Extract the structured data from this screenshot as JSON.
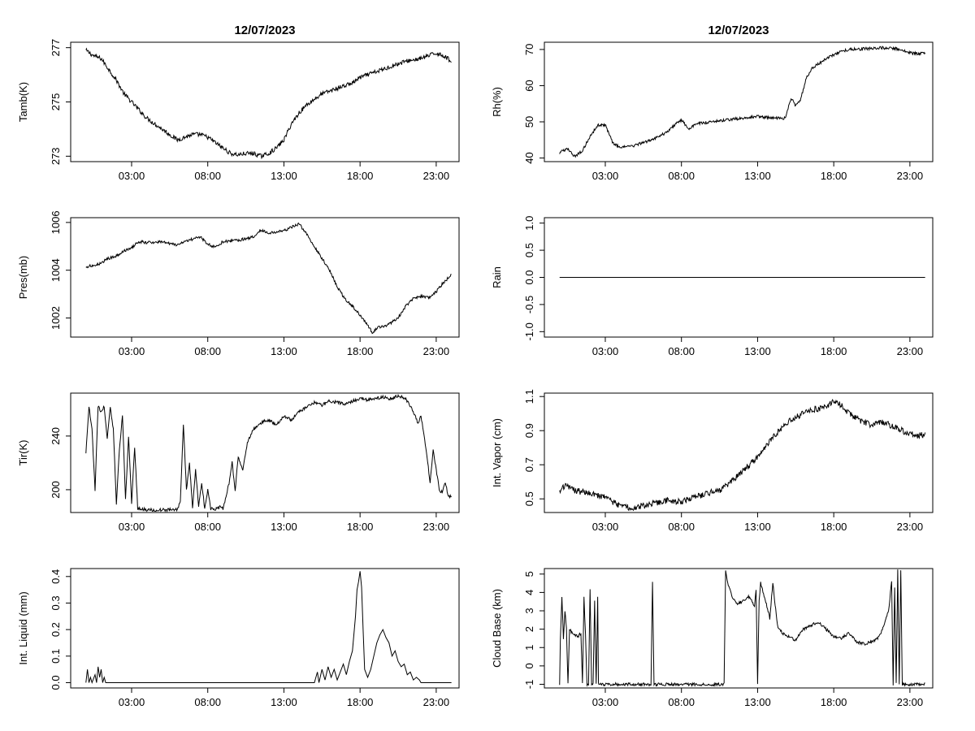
{
  "chart_data": [
    {
      "id": "tamb",
      "type": "line",
      "title": "12/07/2023",
      "ylabel": "Tamb(K)",
      "xlim": [
        -1,
        24.5
      ],
      "xticks": [
        3,
        8,
        13,
        18,
        23
      ],
      "xtick_labels": [
        "03:00",
        "08:00",
        "13:00",
        "18:00",
        "23:00"
      ],
      "ylim": [
        272.8,
        277.2
      ],
      "yticks": [
        273,
        275,
        277
      ],
      "ytick_labels": [
        "273",
        "275",
        "277"
      ],
      "noise": 0.08,
      "x": [
        0,
        0.5,
        1,
        1.5,
        2,
        2.5,
        3,
        3.5,
        4,
        4.5,
        5,
        5.5,
        6,
        6.5,
        7,
        7.5,
        8,
        8.5,
        9,
        9.5,
        10,
        10.5,
        11,
        11.5,
        12,
        12.5,
        13,
        13.5,
        14,
        14.5,
        15,
        15.5,
        16,
        16.5,
        17,
        17.5,
        18,
        18.5,
        19,
        19.5,
        20,
        20.5,
        21,
        21.5,
        22,
        22.5,
        23,
        23.5,
        24
      ],
      "y": [
        276.9,
        276.7,
        276.6,
        276.2,
        275.8,
        275.3,
        275.0,
        274.7,
        274.4,
        274.2,
        274.0,
        273.8,
        273.6,
        273.7,
        273.8,
        273.8,
        273.7,
        273.5,
        273.3,
        273.1,
        273.05,
        273.1,
        273.1,
        273.0,
        273.1,
        273.3,
        273.6,
        274.2,
        274.6,
        274.9,
        275.1,
        275.3,
        275.4,
        275.5,
        275.6,
        275.7,
        275.9,
        276.0,
        276.1,
        276.2,
        276.3,
        276.4,
        276.5,
        276.55,
        276.6,
        276.7,
        276.8,
        276.7,
        276.5
      ]
    },
    {
      "id": "rh",
      "type": "line",
      "title": "12/07/2023",
      "ylabel": "Rh(%)",
      "xlim": [
        -1,
        24.5
      ],
      "xticks": [
        3,
        8,
        13,
        18,
        23
      ],
      "xtick_labels": [
        "03:00",
        "08:00",
        "13:00",
        "18:00",
        "23:00"
      ],
      "ylim": [
        39,
        72
      ],
      "yticks": [
        40,
        50,
        60,
        70
      ],
      "ytick_labels": [
        "40",
        "50",
        "60",
        "70"
      ],
      "noise": 0.4,
      "x": [
        0,
        0.5,
        1,
        1.5,
        2,
        2.5,
        3,
        3.5,
        4,
        5,
        6,
        7,
        7.5,
        8,
        8.5,
        9,
        10,
        11,
        12,
        13,
        14,
        14.8,
        15.2,
        15.5,
        15.8,
        16.2,
        16.6,
        17,
        17.5,
        18,
        18.5,
        19,
        20,
        21,
        22,
        22.5,
        23,
        23.5,
        24
      ],
      "y": [
        41.5,
        42.5,
        40.5,
        42.0,
        46.0,
        49.0,
        49.2,
        44.0,
        43.0,
        43.5,
        45.0,
        47.0,
        49.0,
        50.5,
        48.0,
        49.5,
        50.0,
        50.5,
        51.0,
        51.5,
        51.0,
        51.0,
        56.5,
        54.5,
        56.0,
        62.0,
        65.0,
        66.0,
        67.5,
        68.5,
        69.5,
        70.0,
        70.2,
        70.5,
        70.3,
        70.0,
        69.0,
        68.8,
        69.0
      ]
    },
    {
      "id": "pres",
      "type": "line",
      "title": "",
      "ylabel": "Pres(mb)",
      "xlim": [
        -1,
        24.5
      ],
      "xticks": [
        3,
        8,
        13,
        18,
        23
      ],
      "xtick_labels": [
        "03:00",
        "08:00",
        "13:00",
        "18:00",
        "23:00"
      ],
      "ylim": [
        1001.2,
        1006.2
      ],
      "yticks": [
        1002,
        1004,
        1006
      ],
      "ytick_labels": [
        "1002",
        "1004",
        "1006"
      ],
      "noise": 0.06,
      "x": [
        0,
        0.5,
        1,
        1.5,
        2,
        2.5,
        3,
        3.5,
        4,
        5,
        6,
        7,
        7.5,
        8,
        8.5,
        9,
        10,
        11,
        11.5,
        12,
        13,
        13.5,
        14,
        14.5,
        15,
        15.5,
        16,
        16.5,
        17,
        17.5,
        18,
        18.5,
        18.8,
        19.2,
        19.8,
        20.5,
        21,
        21.5,
        22,
        22.5,
        23,
        23.5,
        24
      ],
      "y": [
        1004.15,
        1004.2,
        1004.3,
        1004.5,
        1004.6,
        1004.8,
        1004.95,
        1005.2,
        1005.15,
        1005.2,
        1005.05,
        1005.3,
        1005.4,
        1005.1,
        1004.95,
        1005.2,
        1005.25,
        1005.4,
        1005.7,
        1005.55,
        1005.65,
        1005.8,
        1005.95,
        1005.5,
        1005.0,
        1004.5,
        1004.0,
        1003.3,
        1002.8,
        1002.5,
        1002.1,
        1001.7,
        1001.4,
        1001.6,
        1001.7,
        1002.0,
        1002.5,
        1002.8,
        1002.9,
        1002.85,
        1003.1,
        1003.5,
        1003.8
      ]
    },
    {
      "id": "rain",
      "type": "line",
      "title": "",
      "ylabel": "Rain",
      "xlim": [
        -1,
        24.5
      ],
      "xticks": [
        3,
        8,
        13,
        18,
        23
      ],
      "xtick_labels": [
        "03:00",
        "08:00",
        "13:00",
        "18:00",
        "23:00"
      ],
      "ylim": [
        -1.1,
        1.1
      ],
      "yticks": [
        -1.0,
        -0.5,
        0.0,
        0.5,
        1.0
      ],
      "ytick_labels": [
        "-1.0",
        "-0.5",
        "0.0",
        "0.5",
        "1.0"
      ],
      "noise": 0,
      "x": [
        0,
        24
      ],
      "y": [
        0,
        0
      ]
    },
    {
      "id": "tir",
      "type": "line",
      "title": "",
      "ylabel": "Tir(K)",
      "xlim": [
        -1,
        24.5
      ],
      "xticks": [
        3,
        8,
        13,
        18,
        23
      ],
      "xtick_labels": [
        "03:00",
        "08:00",
        "13:00",
        "18:00",
        "23:00"
      ],
      "ylim": [
        183,
        272
      ],
      "yticks": [
        200,
        240
      ],
      "ytick_labels": [
        "200",
        "240"
      ],
      "noise": 1.2,
      "x": [
        0,
        0.2,
        0.4,
        0.6,
        0.8,
        1.0,
        1.2,
        1.4,
        1.6,
        1.8,
        2.0,
        2.2,
        2.4,
        2.6,
        2.8,
        3.0,
        3.2,
        3.4,
        3.6,
        4.0,
        5.0,
        6.0,
        6.2,
        6.4,
        6.6,
        6.8,
        7.0,
        7.2,
        7.4,
        7.6,
        7.8,
        8.0,
        8.2,
        8.4,
        8.6,
        8.8,
        9.0,
        9.2,
        9.4,
        9.6,
        9.8,
        10.0,
        10.3,
        10.6,
        11.0,
        11.5,
        12.0,
        12.5,
        13.0,
        13.5,
        14.0,
        14.5,
        15.0,
        15.5,
        16.0,
        16.5,
        17.0,
        17.5,
        18.0,
        18.5,
        19.0,
        19.5,
        20.0,
        20.5,
        21.0,
        21.4,
        21.8,
        22.0,
        22.2,
        22.4,
        22.6,
        22.8,
        23.0,
        23.2,
        23.4,
        23.6,
        23.8,
        24.0
      ],
      "y": [
        228,
        262,
        245,
        200,
        262,
        258,
        262,
        238,
        262,
        245,
        190,
        230,
        255,
        192,
        240,
        190,
        232,
        186,
        186,
        185,
        185,
        185,
        192,
        248,
        200,
        220,
        186,
        215,
        188,
        205,
        186,
        200,
        186,
        185,
        186,
        187,
        186,
        195,
        205,
        220,
        200,
        225,
        215,
        235,
        245,
        250,
        252,
        248,
        255,
        252,
        258,
        262,
        265,
        263,
        266,
        265,
        264,
        266,
        268,
        267,
        268,
        269,
        268,
        270,
        268,
        260,
        250,
        255,
        240,
        225,
        205,
        230,
        215,
        200,
        198,
        205,
        195,
        195
      ]
    },
    {
      "id": "vapor",
      "type": "line",
      "title": "",
      "ylabel": "Int. Vapor (cm)",
      "xlim": [
        -1,
        24.5
      ],
      "xticks": [
        3,
        8,
        13,
        18,
        23
      ],
      "xtick_labels": [
        "03:00",
        "08:00",
        "13:00",
        "18:00",
        "23:00"
      ],
      "ylim": [
        0.42,
        1.12
      ],
      "yticks": [
        0.5,
        0.7,
        0.9,
        1.1
      ],
      "ytick_labels": [
        "0.5",
        "0.7",
        "0.9",
        "1.1"
      ],
      "noise": 0.018,
      "x": [
        0,
        0.5,
        1,
        1.5,
        2,
        2.5,
        3,
        3.5,
        4,
        4.5,
        5,
        5.5,
        6,
        6.5,
        7,
        7.5,
        8,
        8.5,
        9,
        9.5,
        10,
        10.5,
        11,
        11.5,
        12,
        12.5,
        13,
        13.5,
        14,
        14.5,
        15,
        15.5,
        16,
        16.5,
        17,
        17.5,
        18,
        18.5,
        19,
        19.5,
        20,
        20.5,
        21,
        21.5,
        22,
        22.5,
        23,
        23.5,
        24
      ],
      "y": [
        0.55,
        0.58,
        0.55,
        0.54,
        0.53,
        0.52,
        0.51,
        0.48,
        0.46,
        0.45,
        0.45,
        0.46,
        0.47,
        0.48,
        0.49,
        0.49,
        0.48,
        0.5,
        0.51,
        0.53,
        0.54,
        0.55,
        0.58,
        0.62,
        0.66,
        0.7,
        0.75,
        0.8,
        0.86,
        0.91,
        0.95,
        0.98,
        1.0,
        1.02,
        1.03,
        1.04,
        1.08,
        1.05,
        1.0,
        0.97,
        0.95,
        0.93,
        0.95,
        0.94,
        0.92,
        0.9,
        0.88,
        0.87,
        0.88
      ]
    },
    {
      "id": "liquid",
      "type": "line",
      "title": "",
      "ylabel": "Int. Liquid (mm)",
      "xlim": [
        -1,
        24.5
      ],
      "xticks": [
        3,
        8,
        13,
        18,
        23
      ],
      "xtick_labels": [
        "03:00",
        "08:00",
        "13:00",
        "18:00",
        "23:00"
      ],
      "ylim": [
        -0.02,
        0.43
      ],
      "yticks": [
        0.0,
        0.1,
        0.2,
        0.3,
        0.4
      ],
      "ytick_labels": [
        "0.0",
        "0.1",
        "0.2",
        "0.3",
        "0.4"
      ],
      "noise": 0,
      "x": [
        0,
        0.1,
        0.2,
        0.3,
        0.4,
        0.6,
        0.7,
        0.8,
        0.9,
        1.0,
        1.1,
        1.2,
        1.3,
        1.5,
        14.0,
        15.0,
        15.2,
        15.3,
        15.5,
        15.7,
        15.9,
        16.1,
        16.3,
        16.5,
        16.7,
        16.9,
        17.1,
        17.3,
        17.5,
        17.7,
        17.8,
        17.9,
        18.0,
        18.1,
        18.2,
        18.3,
        18.5,
        18.7,
        18.9,
        19.1,
        19.3,
        19.5,
        19.7,
        19.9,
        20.1,
        20.3,
        20.5,
        20.7,
        20.9,
        21.1,
        21.3,
        21.5,
        21.7,
        21.9,
        22.0,
        24.0
      ],
      "y": [
        0,
        0.05,
        0,
        0.02,
        0,
        0.03,
        0,
        0.06,
        0.02,
        0.05,
        0,
        0.02,
        0,
        0,
        0,
        0,
        0.04,
        0,
        0.05,
        0.01,
        0.06,
        0.02,
        0.05,
        0.01,
        0.04,
        0.07,
        0.03,
        0.08,
        0.12,
        0.25,
        0.35,
        0.38,
        0.42,
        0.36,
        0.2,
        0.05,
        0.02,
        0.05,
        0.1,
        0.15,
        0.18,
        0.2,
        0.17,
        0.15,
        0.1,
        0.12,
        0.08,
        0.06,
        0.07,
        0.03,
        0.04,
        0.01,
        0.02,
        0.01,
        0,
        0
      ]
    },
    {
      "id": "cloud",
      "type": "line",
      "title": "",
      "ylabel": "Cloud Base (km)",
      "xlim": [
        -1,
        24.5
      ],
      "xticks": [
        3,
        8,
        13,
        18,
        23
      ],
      "xtick_labels": [
        "03:00",
        "08:00",
        "13:00",
        "18:00",
        "23:00"
      ],
      "ylim": [
        -1.2,
        5.3
      ],
      "yticks": [
        -1,
        0,
        1,
        2,
        3,
        4,
        5
      ],
      "ytick_labels": [
        "-1",
        "0",
        "1",
        "2",
        "3",
        "4",
        "5"
      ],
      "noise": 0.08,
      "x": [
        0,
        0.05,
        0.15,
        0.25,
        0.35,
        0.45,
        0.55,
        0.65,
        0.8,
        1.0,
        1.2,
        1.4,
        1.5,
        1.6,
        1.7,
        1.8,
        1.9,
        2.0,
        2.1,
        2.2,
        2.3,
        2.4,
        2.5,
        2.55,
        2.65,
        2.75,
        2.9,
        3.0,
        6.0,
        6.1,
        6.2,
        6.3,
        6.4,
        10.8,
        10.9,
        11.0,
        11.3,
        11.6,
        12.0,
        12.4,
        12.8,
        12.9,
        13.0,
        13.1,
        13.2,
        13.5,
        13.8,
        14.0,
        14.3,
        14.6,
        15.0,
        15.5,
        16.0,
        16.5,
        17.0,
        17.5,
        18.0,
        18.5,
        19.0,
        19.5,
        20.0,
        20.5,
        21.0,
        21.3,
        21.6,
        21.8,
        21.9,
        22.0,
        22.1,
        22.2,
        22.3,
        22.4,
        22.5,
        22.6,
        22.7,
        22.8,
        23.0,
        24.0
      ],
      "y": [
        -1,
        1.5,
        3.7,
        1.5,
        3.0,
        2.0,
        -1,
        2.0,
        1.8,
        1.7,
        1.6,
        1.8,
        -1,
        3.7,
        1.7,
        -1,
        -1,
        4.2,
        -1,
        -1,
        3.5,
        -1,
        3.8,
        -1,
        -1,
        -1,
        -1,
        -1,
        -1,
        4.5,
        -1,
        -1,
        -1,
        -1,
        5.2,
        4.6,
        3.8,
        3.4,
        3.5,
        3.8,
        3.3,
        4.2,
        -1,
        3.5,
        4.5,
        3.6,
        2.6,
        4.5,
        2.2,
        1.8,
        1.6,
        1.4,
        2.0,
        2.2,
        2.4,
        2.0,
        1.6,
        1.5,
        1.8,
        1.3,
        1.2,
        1.3,
        1.6,
        2.2,
        3.0,
        4.6,
        -1,
        4.2,
        -1,
        5.2,
        -1,
        5.2,
        -1,
        -1,
        -1,
        -1,
        -1,
        -1
      ]
    }
  ]
}
